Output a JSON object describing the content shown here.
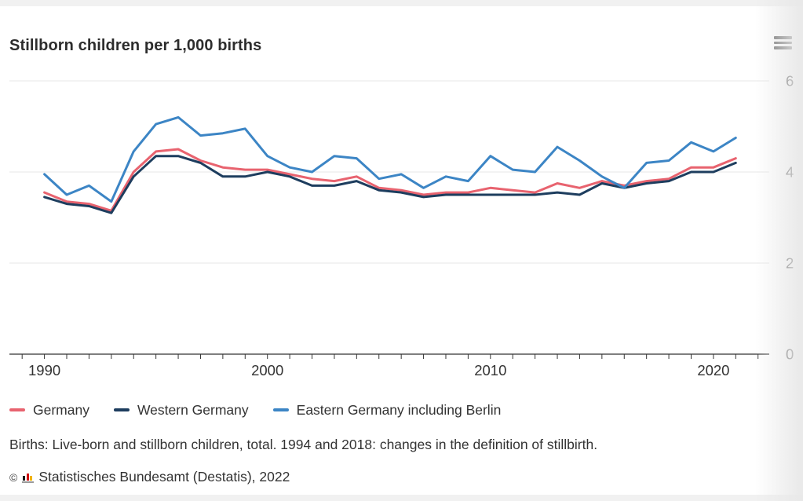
{
  "header": {
    "title": "Stillborn children per 1,000 births",
    "menu_icon": "hamburger-menu"
  },
  "chart_data": {
    "type": "line",
    "title": "Stillborn children per 1,000 births",
    "x": [
      1990,
      1991,
      1992,
      1993,
      1994,
      1995,
      1996,
      1997,
      1998,
      1999,
      2000,
      2001,
      2002,
      2003,
      2004,
      2005,
      2006,
      2007,
      2008,
      2009,
      2010,
      2011,
      2012,
      2013,
      2014,
      2015,
      2016,
      2017,
      2018,
      2019,
      2020,
      2021
    ],
    "series": [
      {
        "name": "Germany",
        "color": "#e8636f",
        "values": [
          3.55,
          3.35,
          3.3,
          3.15,
          4.0,
          4.45,
          4.5,
          4.25,
          4.1,
          4.05,
          4.05,
          3.95,
          3.85,
          3.8,
          3.9,
          3.65,
          3.6,
          3.5,
          3.55,
          3.55,
          3.65,
          3.6,
          3.55,
          3.75,
          3.65,
          3.8,
          3.7,
          3.8,
          3.85,
          4.1,
          4.1,
          4.3
        ]
      },
      {
        "name": "Western Germany",
        "color": "#1d3d5e",
        "values": [
          3.45,
          3.3,
          3.25,
          3.1,
          3.9,
          4.35,
          4.35,
          4.2,
          3.9,
          3.9,
          4.0,
          3.9,
          3.7,
          3.7,
          3.8,
          3.6,
          3.55,
          3.45,
          3.5,
          3.5,
          3.5,
          3.5,
          3.5,
          3.55,
          3.5,
          3.75,
          3.65,
          3.75,
          3.8,
          4.0,
          4.0,
          4.2
        ]
      },
      {
        "name": "Eastern Germany including Berlin",
        "color": "#3c85c5",
        "values": [
          3.95,
          3.5,
          3.7,
          3.35,
          4.45,
          5.05,
          5.2,
          4.8,
          4.85,
          4.95,
          4.35,
          4.1,
          4.0,
          4.35,
          4.3,
          3.85,
          3.95,
          3.65,
          3.9,
          3.8,
          4.35,
          4.05,
          4.0,
          4.55,
          4.25,
          3.9,
          3.65,
          4.2,
          4.25,
          4.65,
          4.45,
          4.75
        ]
      }
    ],
    "xlabel": "",
    "ylabel": "",
    "ylim": [
      0,
      6.2
    ],
    "yticks": [
      0,
      2,
      4,
      6
    ],
    "xticks_labeled": [
      1990,
      2000,
      2010,
      2020
    ],
    "xticks_minor": {
      "from": 1989,
      "to": 2022,
      "every": 1
    },
    "grid": "horizontal",
    "yaxis_side": "right",
    "legend_position": "bottom-left"
  },
  "footer": {
    "note": "Births: Live-born and stillborn children, total. 1994 and 2018: changes in the definition of stillbirth.",
    "copyright": "©",
    "source": "Statistisches Bundesamt (Destatis), 2022"
  }
}
